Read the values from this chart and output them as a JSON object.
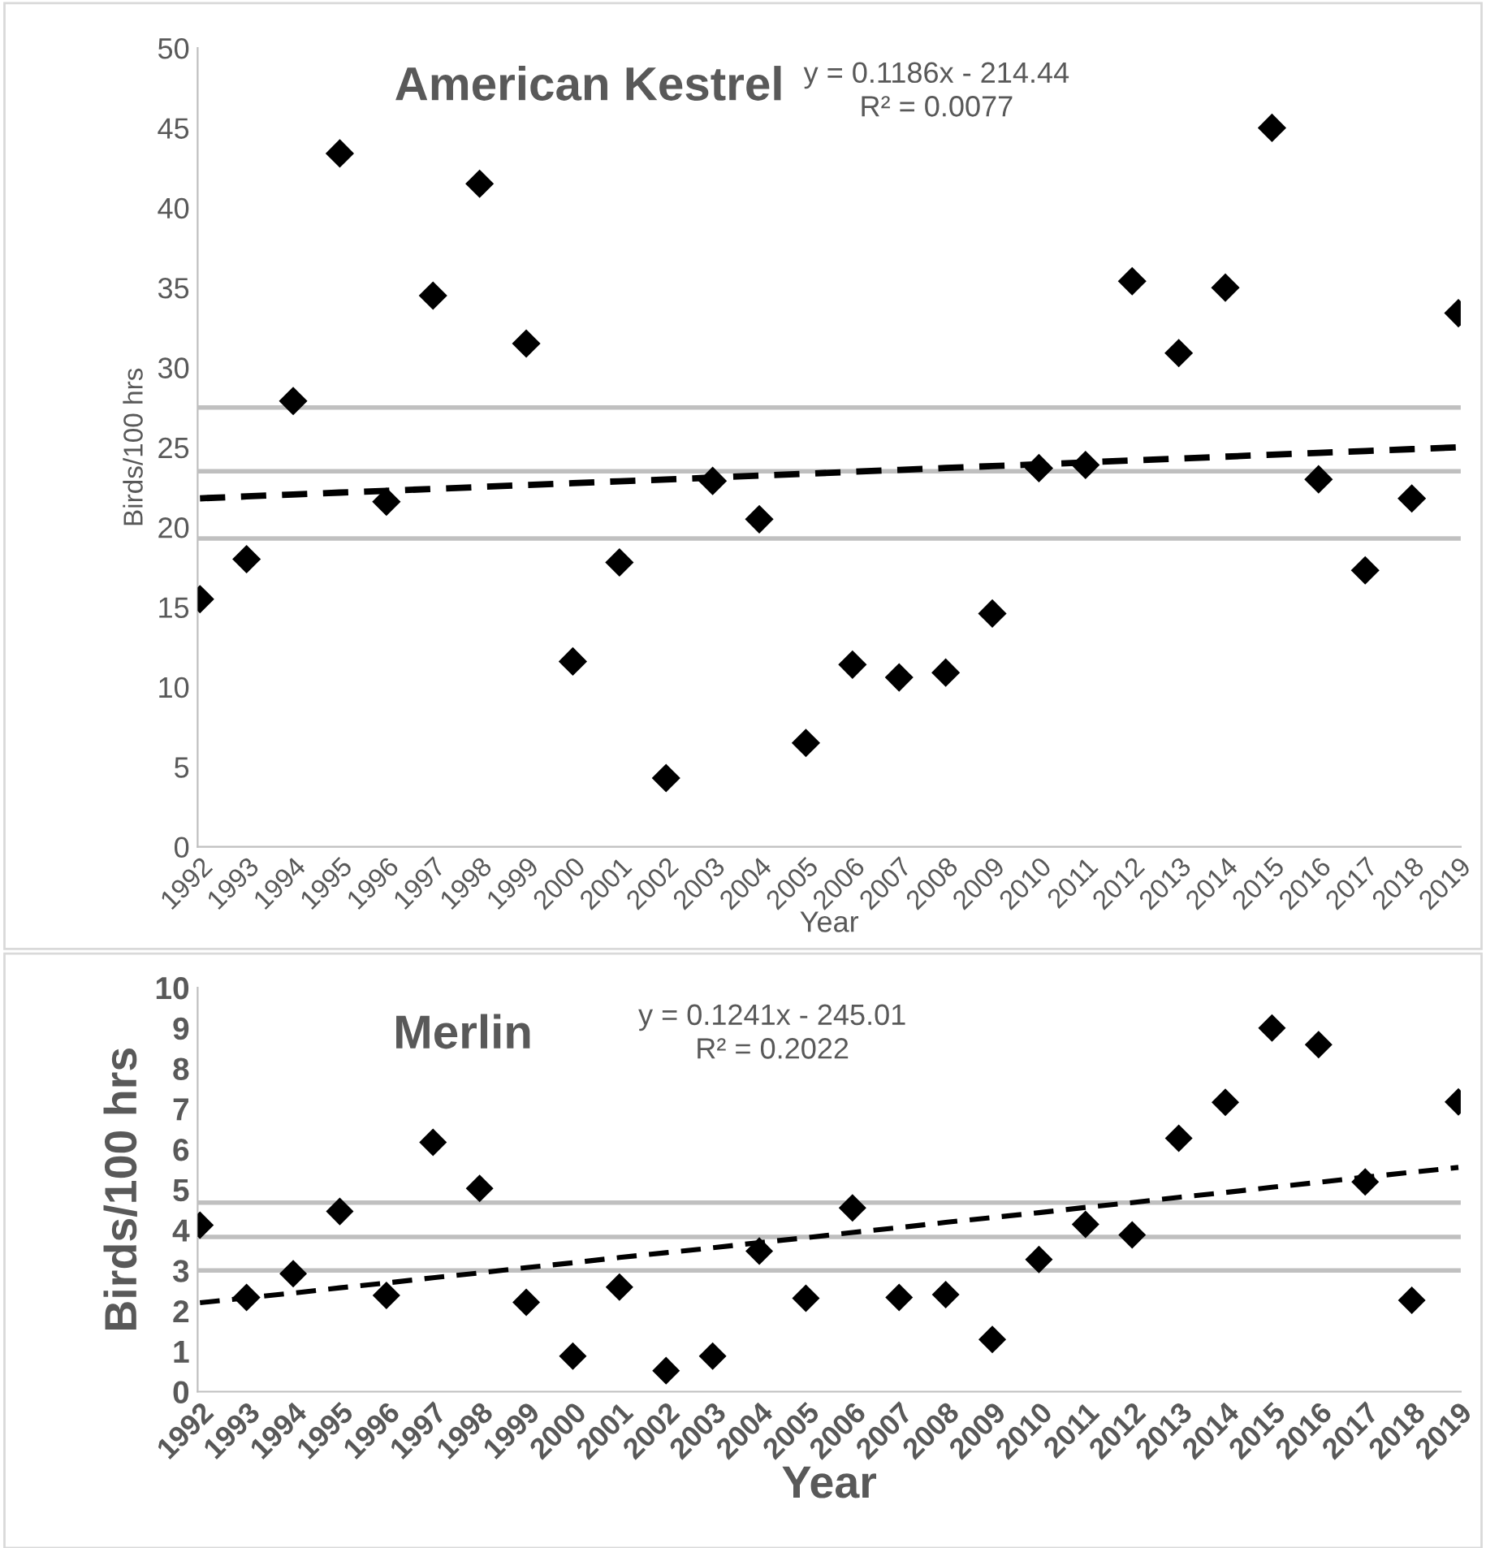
{
  "chart_data": [
    {
      "type": "scatter",
      "title": "American Kestrel",
      "ylabel": "Birds/100 hrs",
      "xlabel": "Year",
      "categories": [
        "1992",
        "1993",
        "1994",
        "1995",
        "1996",
        "1997",
        "1998",
        "1999",
        "2000",
        "2001",
        "2002",
        "2003",
        "2004",
        "2005",
        "2006",
        "2007",
        "2008",
        "2009",
        "2010",
        "2011",
        "2012",
        "2013",
        "2014",
        "2015",
        "2016",
        "2017",
        "2018",
        "2019"
      ],
      "series": [
        {
          "color": "#000000",
          "marker": "diamond",
          "values": [
            15.5,
            18.0,
            27.9,
            43.4,
            21.6,
            34.5,
            41.5,
            31.5,
            11.6,
            17.8,
            4.3,
            22.9,
            20.5,
            6.5,
            11.4,
            10.6,
            10.9,
            14.6,
            23.7,
            23.9,
            35.4,
            30.9,
            35.0,
            45.0,
            23.0,
            17.3,
            21.8,
            33.4
          ]
        },
        {
          "type": "line",
          "color": "#000000",
          "line_style": "dashed",
          "marker": "none",
          "values": [
            21.81,
            21.93,
            22.05,
            22.17,
            22.28,
            22.4,
            22.52,
            22.64,
            22.76,
            22.88,
            22.99,
            23.11,
            23.23,
            23.35,
            23.47,
            23.59,
            23.71,
            23.83,
            23.94,
            24.06,
            24.18,
            24.3,
            24.42,
            24.54,
            24.66,
            24.77,
            24.89,
            25.01
          ]
        }
      ],
      "ref_lines": [
        {
          "axis": "y",
          "value": 27.5,
          "color": "#c0c0c0"
        },
        {
          "axis": "y",
          "value": 23.5,
          "color": "#bfbfbf"
        },
        {
          "axis": "y",
          "value": 19.3,
          "color": "#c0c0c0"
        }
      ],
      "annotations": [
        "y = 0.1186x - 214.44\nR² = 0.0077"
      ],
      "ylim": [
        0,
        50
      ],
      "yticks": [
        0,
        5,
        10,
        15,
        20,
        25,
        30,
        35,
        40,
        45,
        50
      ],
      "grid": false,
      "legend": false
    },
    {
      "type": "scatter",
      "title": "Merlin",
      "ylabel": "Birds/100 hrs",
      "xlabel": "Year",
      "categories": [
        "1992",
        "1993",
        "1994",
        "1995",
        "1996",
        "1997",
        "1998",
        "1999",
        "2000",
        "2001",
        "2002",
        "2003",
        "2004",
        "2005",
        "2006",
        "2007",
        "2008",
        "2009",
        "2010",
        "2011",
        "2012",
        "2013",
        "2014",
        "2015",
        "2016",
        "2017",
        "2018",
        "2019"
      ],
      "series": [
        {
          "color": "#000000",
          "marker": "diamond",
          "values": [
            4.12,
            2.33,
            2.92,
            4.46,
            2.38,
            6.17,
            5.03,
            2.21,
            0.88,
            2.59,
            0.52,
            0.88,
            3.48,
            2.31,
            4.55,
            2.33,
            2.4,
            1.29,
            3.27,
            4.14,
            3.88,
            6.27,
            7.16,
            9.0,
            8.59,
            5.19,
            2.26,
            7.17
          ]
        },
        {
          "type": "line",
          "color": "#000000",
          "line_style": "dashed",
          "marker": "none",
          "values": [
            2.2,
            2.32,
            2.44,
            2.57,
            2.69,
            2.82,
            2.94,
            3.07,
            3.19,
            3.32,
            3.44,
            3.56,
            3.69,
            3.81,
            3.94,
            4.06,
            4.19,
            4.31,
            4.43,
            4.56,
            4.68,
            4.81,
            4.93,
            5.06,
            5.18,
            5.31,
            5.43,
            5.55
          ]
        }
      ],
      "ref_lines": [
        {
          "axis": "y",
          "value": 4.68,
          "color": "#c0c0c0"
        },
        {
          "axis": "y",
          "value": 3.83,
          "color": "#bfbfbf"
        },
        {
          "axis": "y",
          "value": 3.0,
          "color": "#c0c0c0"
        }
      ],
      "annotations": [
        "y = 0.1241x - 245.01\nR² = 0.2022"
      ],
      "ylim": [
        0,
        10
      ],
      "yticks": [
        0,
        1,
        2,
        3,
        4,
        5,
        6,
        7,
        8,
        9,
        10
      ],
      "grid": false,
      "legend": false
    }
  ]
}
